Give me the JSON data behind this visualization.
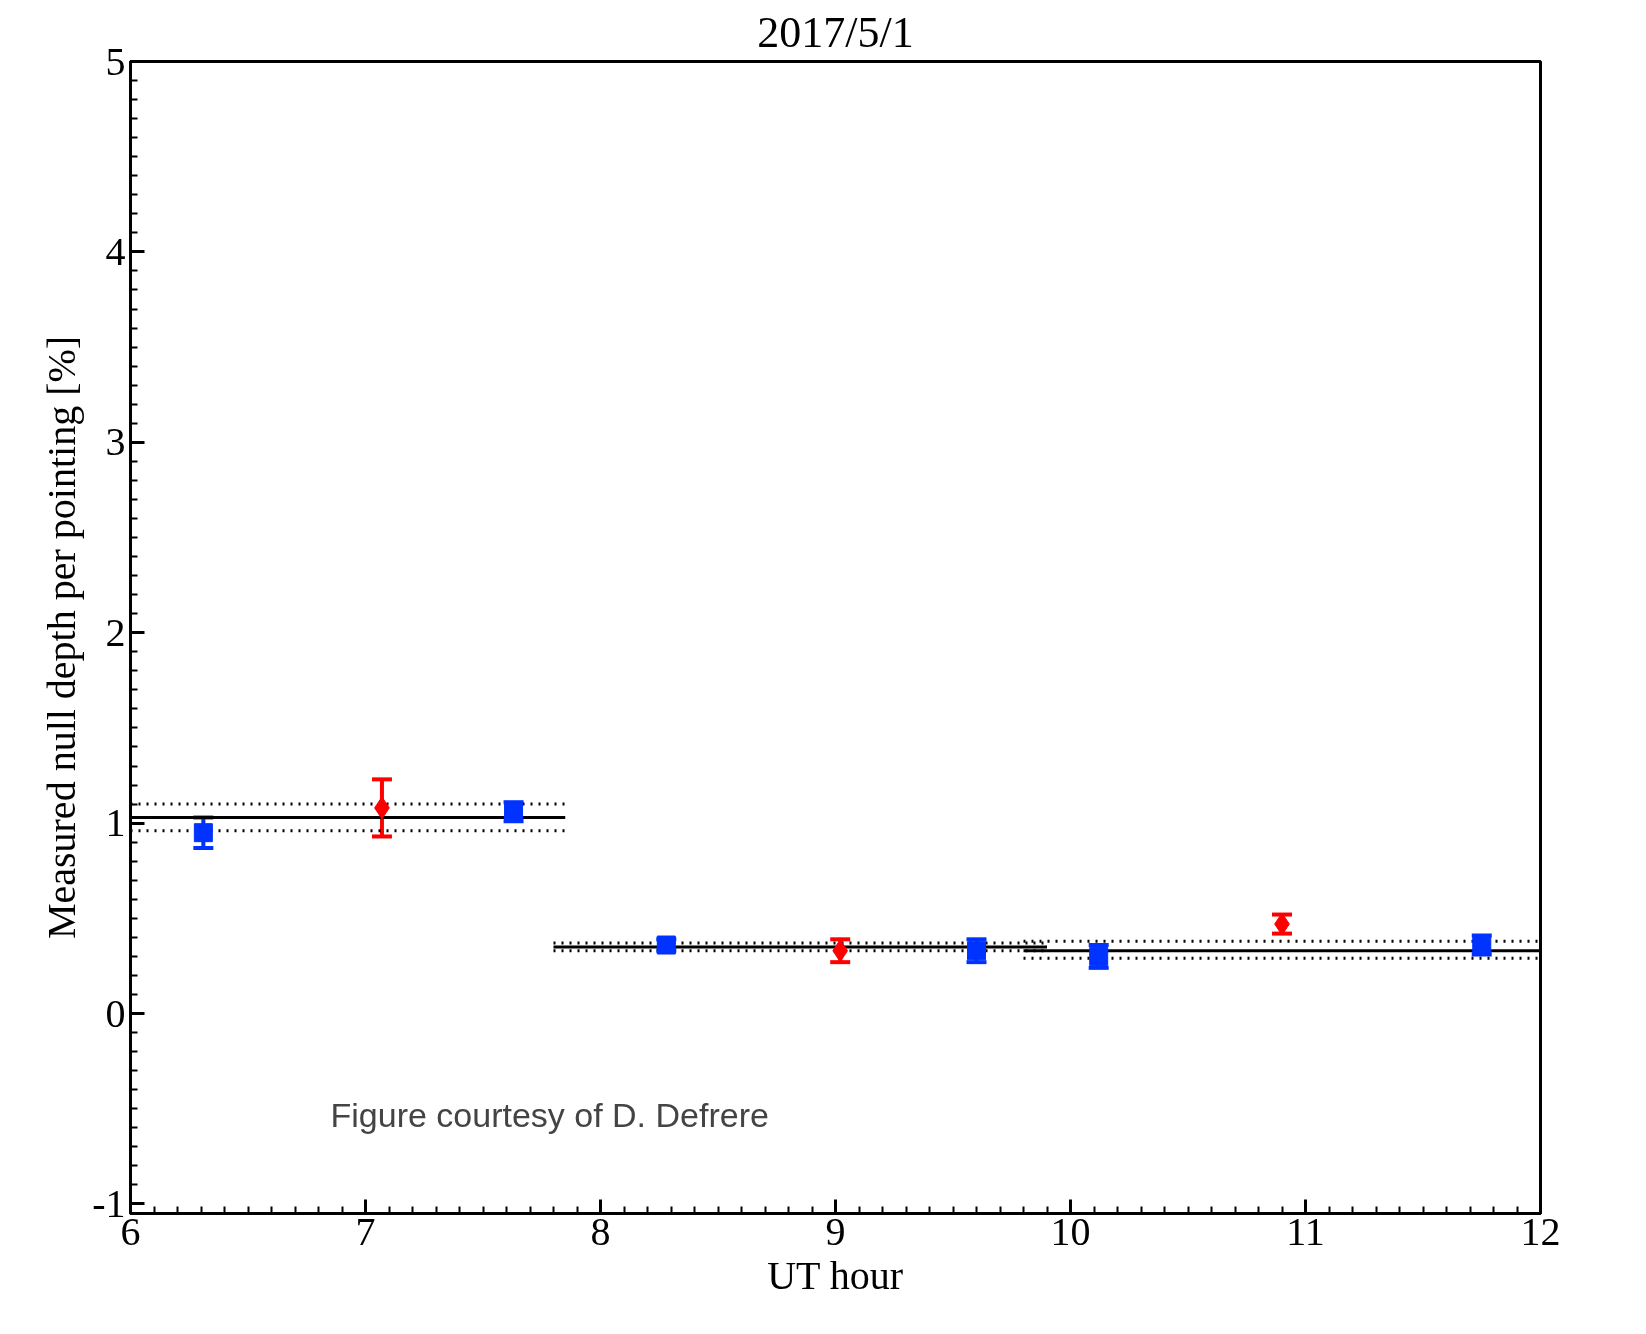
{
  "chart_data": {
    "type": "scatter",
    "title": "2017/5/1",
    "xlabel": "UT hour",
    "ylabel": "Measured null depth per pointing [%]",
    "xlim": [
      6,
      12
    ],
    "xticks": [
      6,
      7,
      8,
      9,
      10,
      11,
      12
    ],
    "ylim": [
      -1.05,
      5
    ],
    "yticks": [
      -1,
      0,
      1,
      2,
      3,
      4,
      5
    ],
    "grid": false,
    "annotations": [
      "Figure courtesy of D. Defrere"
    ],
    "series": [
      {
        "marker": "square",
        "color": "#0033ff",
        "x": [
          6.31,
          7.63,
          8.28,
          9.6,
          10.12,
          11.75
        ],
        "values": [
          0.95,
          1.06,
          0.36,
          0.33,
          0.3,
          0.36
        ],
        "errors": [
          0.08,
          0.05,
          0.03,
          0.06,
          0.06,
          0.05
        ]
      },
      {
        "marker": "diamond",
        "color": "#ff0000",
        "x": [
          7.07,
          9.02,
          10.9
        ],
        "values": [
          1.08,
          0.33,
          0.47
        ],
        "errors": [
          0.15,
          0.06,
          0.05
        ]
      },
      {
        "type": "line",
        "marker": "none",
        "line_style": "solid",
        "color": "#000000",
        "x": [
          6,
          7.85
        ],
        "values": [
          1.03,
          1.03
        ]
      },
      {
        "type": "line",
        "marker": "none",
        "line_style": "dotted",
        "color": "#000000",
        "x": [
          6,
          7.85
        ],
        "values": [
          1.1,
          1.1
        ]
      },
      {
        "type": "line",
        "marker": "none",
        "line_style": "dotted",
        "color": "#000000",
        "x": [
          6,
          7.85
        ],
        "values": [
          0.96,
          0.96
        ]
      },
      {
        "type": "line",
        "marker": "none",
        "line_style": "solid",
        "color": "#000000",
        "x": [
          7.8,
          9.9
        ],
        "values": [
          0.35,
          0.35
        ]
      },
      {
        "type": "line",
        "marker": "none",
        "line_style": "dotted",
        "color": "#000000",
        "x": [
          7.8,
          9.9
        ],
        "values": [
          0.37,
          0.37
        ]
      },
      {
        "type": "line",
        "marker": "none",
        "line_style": "dotted",
        "color": "#000000",
        "x": [
          7.8,
          9.9
        ],
        "values": [
          0.33,
          0.33
        ]
      },
      {
        "type": "line",
        "marker": "none",
        "line_style": "solid",
        "color": "#000000",
        "x": [
          9.8,
          12
        ],
        "values": [
          0.33,
          0.33
        ]
      },
      {
        "type": "line",
        "marker": "none",
        "line_style": "dotted",
        "color": "#000000",
        "x": [
          9.8,
          12
        ],
        "values": [
          0.38,
          0.38
        ]
      },
      {
        "type": "line",
        "marker": "none",
        "line_style": "dotted",
        "color": "#000000",
        "x": [
          9.8,
          12
        ],
        "values": [
          0.29,
          0.29
        ]
      }
    ]
  }
}
